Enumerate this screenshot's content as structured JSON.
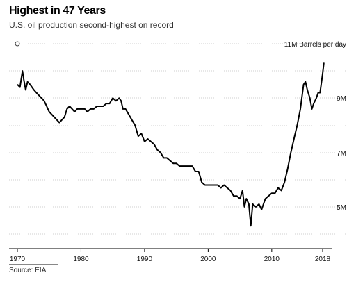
{
  "title": "Highest in 47 Years",
  "subtitle": "U.S. oil production second-highest on record",
  "source": "Source: EIA",
  "chart_data": {
    "type": "line",
    "title": "Highest in 47 Years",
    "subtitle": "U.S. oil production second-highest on record",
    "unit_label": "11M Barrels per day",
    "ylim": [
      4,
      11
    ],
    "xlim": [
      1969.5,
      2018.7
    ],
    "x_ticks": [
      1970,
      1980,
      1990,
      2000,
      2010,
      2018
    ],
    "x_tick_labels": [
      "1970",
      "1980",
      "1990",
      "2000",
      "2010",
      "2018"
    ],
    "y_ticks": [
      5,
      7,
      9
    ],
    "y_tick_labels": [
      "5M",
      "7M",
      "9M"
    ],
    "grid": true,
    "series": [
      {
        "name": "",
        "x": [
          1970.0,
          1970.4,
          1970.8,
          1971.0,
          1971.3,
          1971.6,
          1972.0,
          1972.3,
          1972.6,
          1973.0,
          1973.4,
          1973.8,
          1974.2,
          1974.6,
          1975.0,
          1975.4,
          1975.8,
          1976.2,
          1976.6,
          1977.0,
          1977.4,
          1977.8,
          1978.2,
          1978.6,
          1979.0,
          1979.4,
          1979.8,
          1980.2,
          1980.6,
          1981.0,
          1981.5,
          1982.0,
          1982.5,
          1983.0,
          1983.5,
          1984.0,
          1984.5,
          1985.0,
          1985.5,
          1986.0,
          1986.3,
          1986.6,
          1987.0,
          1987.5,
          1988.0,
          1988.5,
          1989.0,
          1989.5,
          1990.0,
          1990.5,
          1991.0,
          1991.5,
          1992.0,
          1992.5,
          1993.0,
          1993.5,
          1994.0,
          1994.5,
          1995.0,
          1995.5,
          1996.0,
          1996.5,
          1997.0,
          1997.5,
          1998.0,
          1998.5,
          1999.0,
          1999.5,
          2000.0,
          2000.5,
          2001.0,
          2001.5,
          2002.0,
          2002.5,
          2003.0,
          2003.5,
          2004.0,
          2004.5,
          2005.0,
          2005.4,
          2005.7,
          2006.0,
          2006.4,
          2006.7,
          2007.0,
          2007.5,
          2008.0,
          2008.4,
          2008.7,
          2009.0,
          2009.5,
          2010.0,
          2010.5,
          2011.0,
          2011.5,
          2012.0,
          2012.5,
          2013.0,
          2013.5,
          2014.0,
          2014.5,
          2015.0,
          2015.3,
          2015.6,
          2016.0,
          2016.3,
          2016.6,
          2017.0,
          2017.3,
          2017.6,
          2018.0,
          2018.2
        ],
        "values": [
          9.5,
          9.4,
          10.0,
          9.7,
          9.3,
          9.6,
          9.5,
          9.4,
          9.3,
          9.2,
          9.1,
          9.0,
          8.9,
          8.7,
          8.5,
          8.4,
          8.3,
          8.2,
          8.1,
          8.2,
          8.3,
          8.6,
          8.7,
          8.6,
          8.5,
          8.6,
          8.6,
          8.6,
          8.6,
          8.5,
          8.6,
          8.6,
          8.7,
          8.7,
          8.7,
          8.8,
          8.8,
          9.0,
          8.9,
          9.0,
          8.9,
          8.6,
          8.6,
          8.4,
          8.2,
          8.0,
          7.6,
          7.7,
          7.4,
          7.5,
          7.4,
          7.3,
          7.1,
          7.0,
          6.8,
          6.8,
          6.7,
          6.6,
          6.6,
          6.5,
          6.5,
          6.5,
          6.5,
          6.5,
          6.3,
          6.3,
          5.9,
          5.8,
          5.8,
          5.8,
          5.8,
          5.8,
          5.7,
          5.8,
          5.7,
          5.6,
          5.4,
          5.4,
          5.3,
          5.6,
          5.0,
          5.3,
          5.1,
          4.3,
          5.1,
          5.0,
          5.1,
          4.9,
          5.1,
          5.3,
          5.4,
          5.5,
          5.5,
          5.7,
          5.6,
          5.9,
          6.4,
          7.0,
          7.5,
          8.0,
          8.6,
          9.5,
          9.6,
          9.3,
          9.0,
          8.6,
          8.8,
          9.0,
          9.2,
          9.2,
          9.9,
          10.3
        ]
      }
    ]
  }
}
